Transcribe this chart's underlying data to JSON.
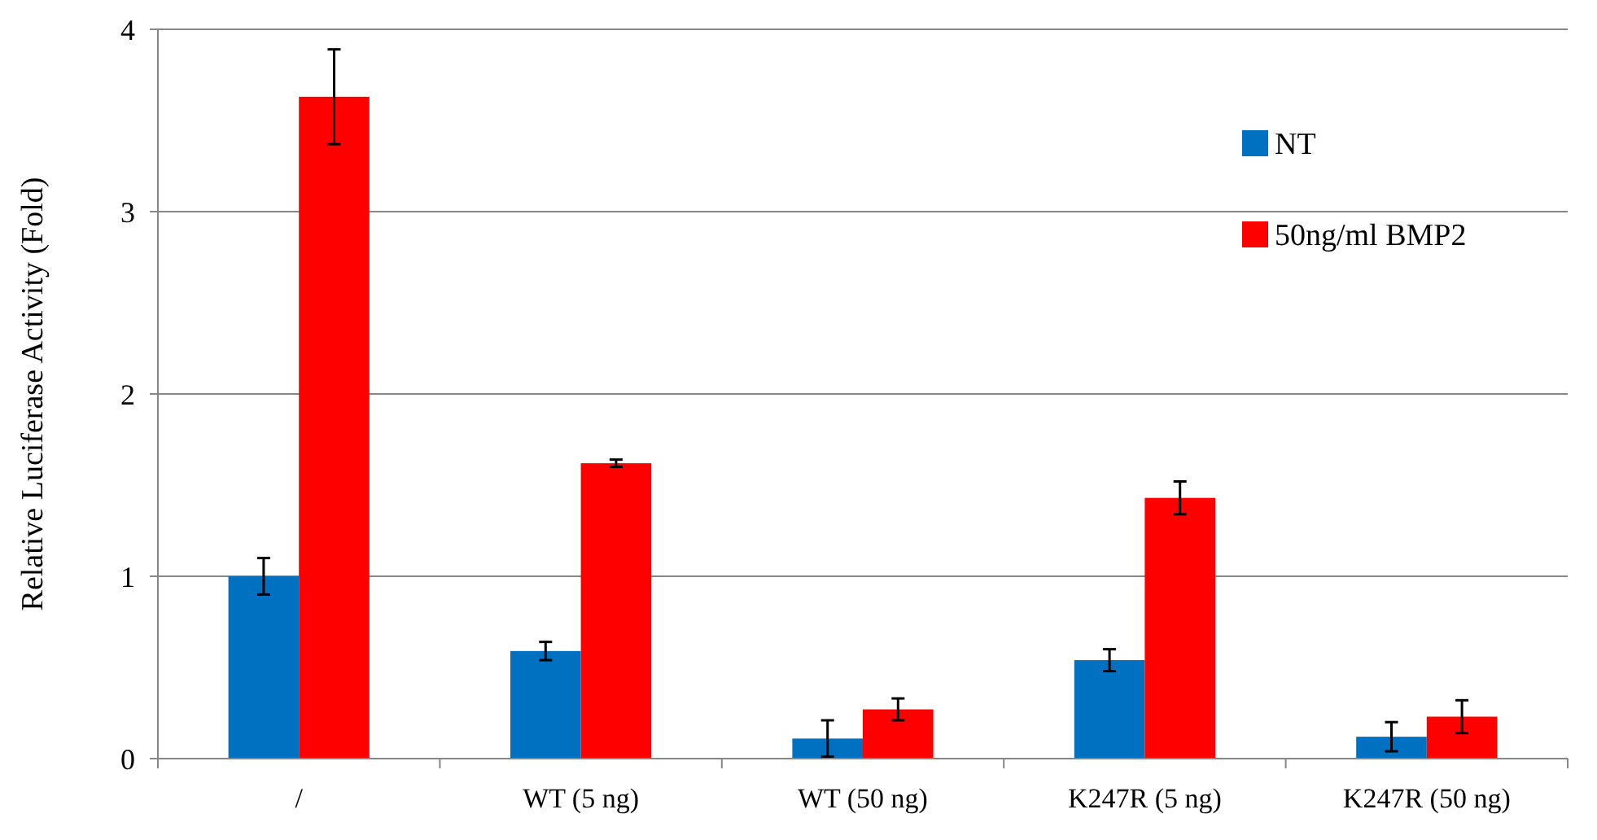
{
  "chart_data": {
    "type": "bar",
    "ylabel": "Relative Luciferase Activity (Fold)",
    "categories": [
      "/",
      "WT (5 ng)",
      "WT (50 ng)",
      "K247R (5 ng)",
      "K247R (50 ng)"
    ],
    "series": [
      {
        "name": "NT",
        "color": "#0070c0",
        "values": [
          1.0,
          0.59,
          0.11,
          0.54,
          0.12
        ],
        "errors": [
          0.1,
          0.05,
          0.1,
          0.06,
          0.08
        ]
      },
      {
        "name": "50ng/ml BMP2",
        "color": "#ff0000",
        "values": [
          3.63,
          1.62,
          0.27,
          1.43,
          0.23
        ],
        "errors": [
          0.26,
          0.02,
          0.06,
          0.09,
          0.09
        ]
      }
    ],
    "ylim": [
      0,
      4
    ],
    "yticks": [
      0,
      1,
      2,
      3,
      4
    ],
    "grid": "y",
    "legend": "top right"
  }
}
